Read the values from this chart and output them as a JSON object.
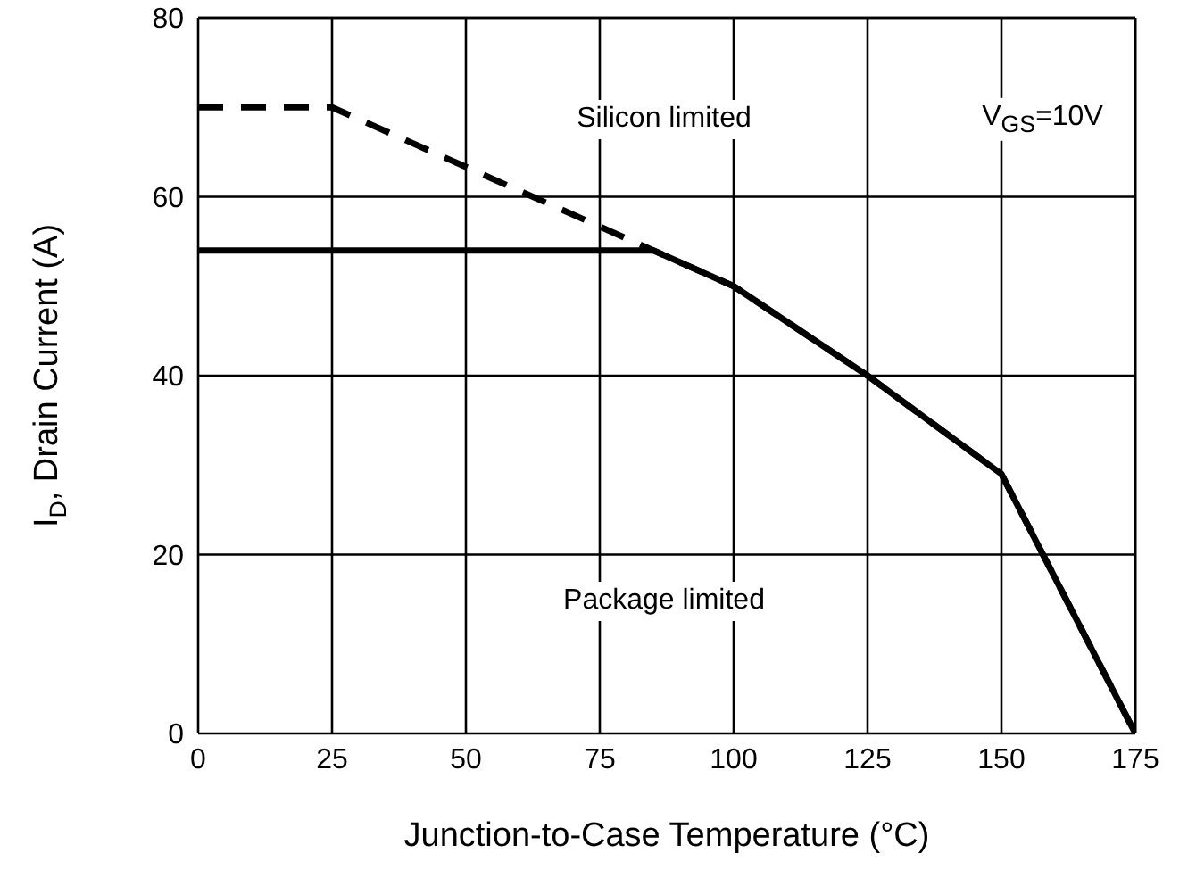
{
  "chart_data": {
    "type": "line",
    "xlabel": "Junction-to-Case Temperature (°C)",
    "ylabel": "I$_{D}$, Drain Current (A)",
    "annotations": [
      "Silicon limited",
      "Package limited",
      "V$_{GS}$=10V"
    ],
    "xlim": [
      0,
      175
    ],
    "xticks": [
      0,
      25,
      50,
      75,
      100,
      125,
      150,
      175
    ],
    "ylim": [
      0,
      80
    ],
    "yticks": [
      0,
      20,
      40,
      60,
      80
    ],
    "grid": true,
    "series": [
      {
        "color": "#000000",
        "line_style": "dashed",
        "x": [
          0,
          25,
          100,
          125,
          150,
          175
        ],
        "values": [
          70,
          70,
          50,
          40,
          29,
          0
        ]
      },
      {
        "color": "#000000",
        "line_style": "solid",
        "x": [
          0,
          85,
          100,
          125,
          150,
          175
        ],
        "values": [
          54,
          54,
          50,
          40,
          29,
          0
        ]
      }
    ]
  }
}
